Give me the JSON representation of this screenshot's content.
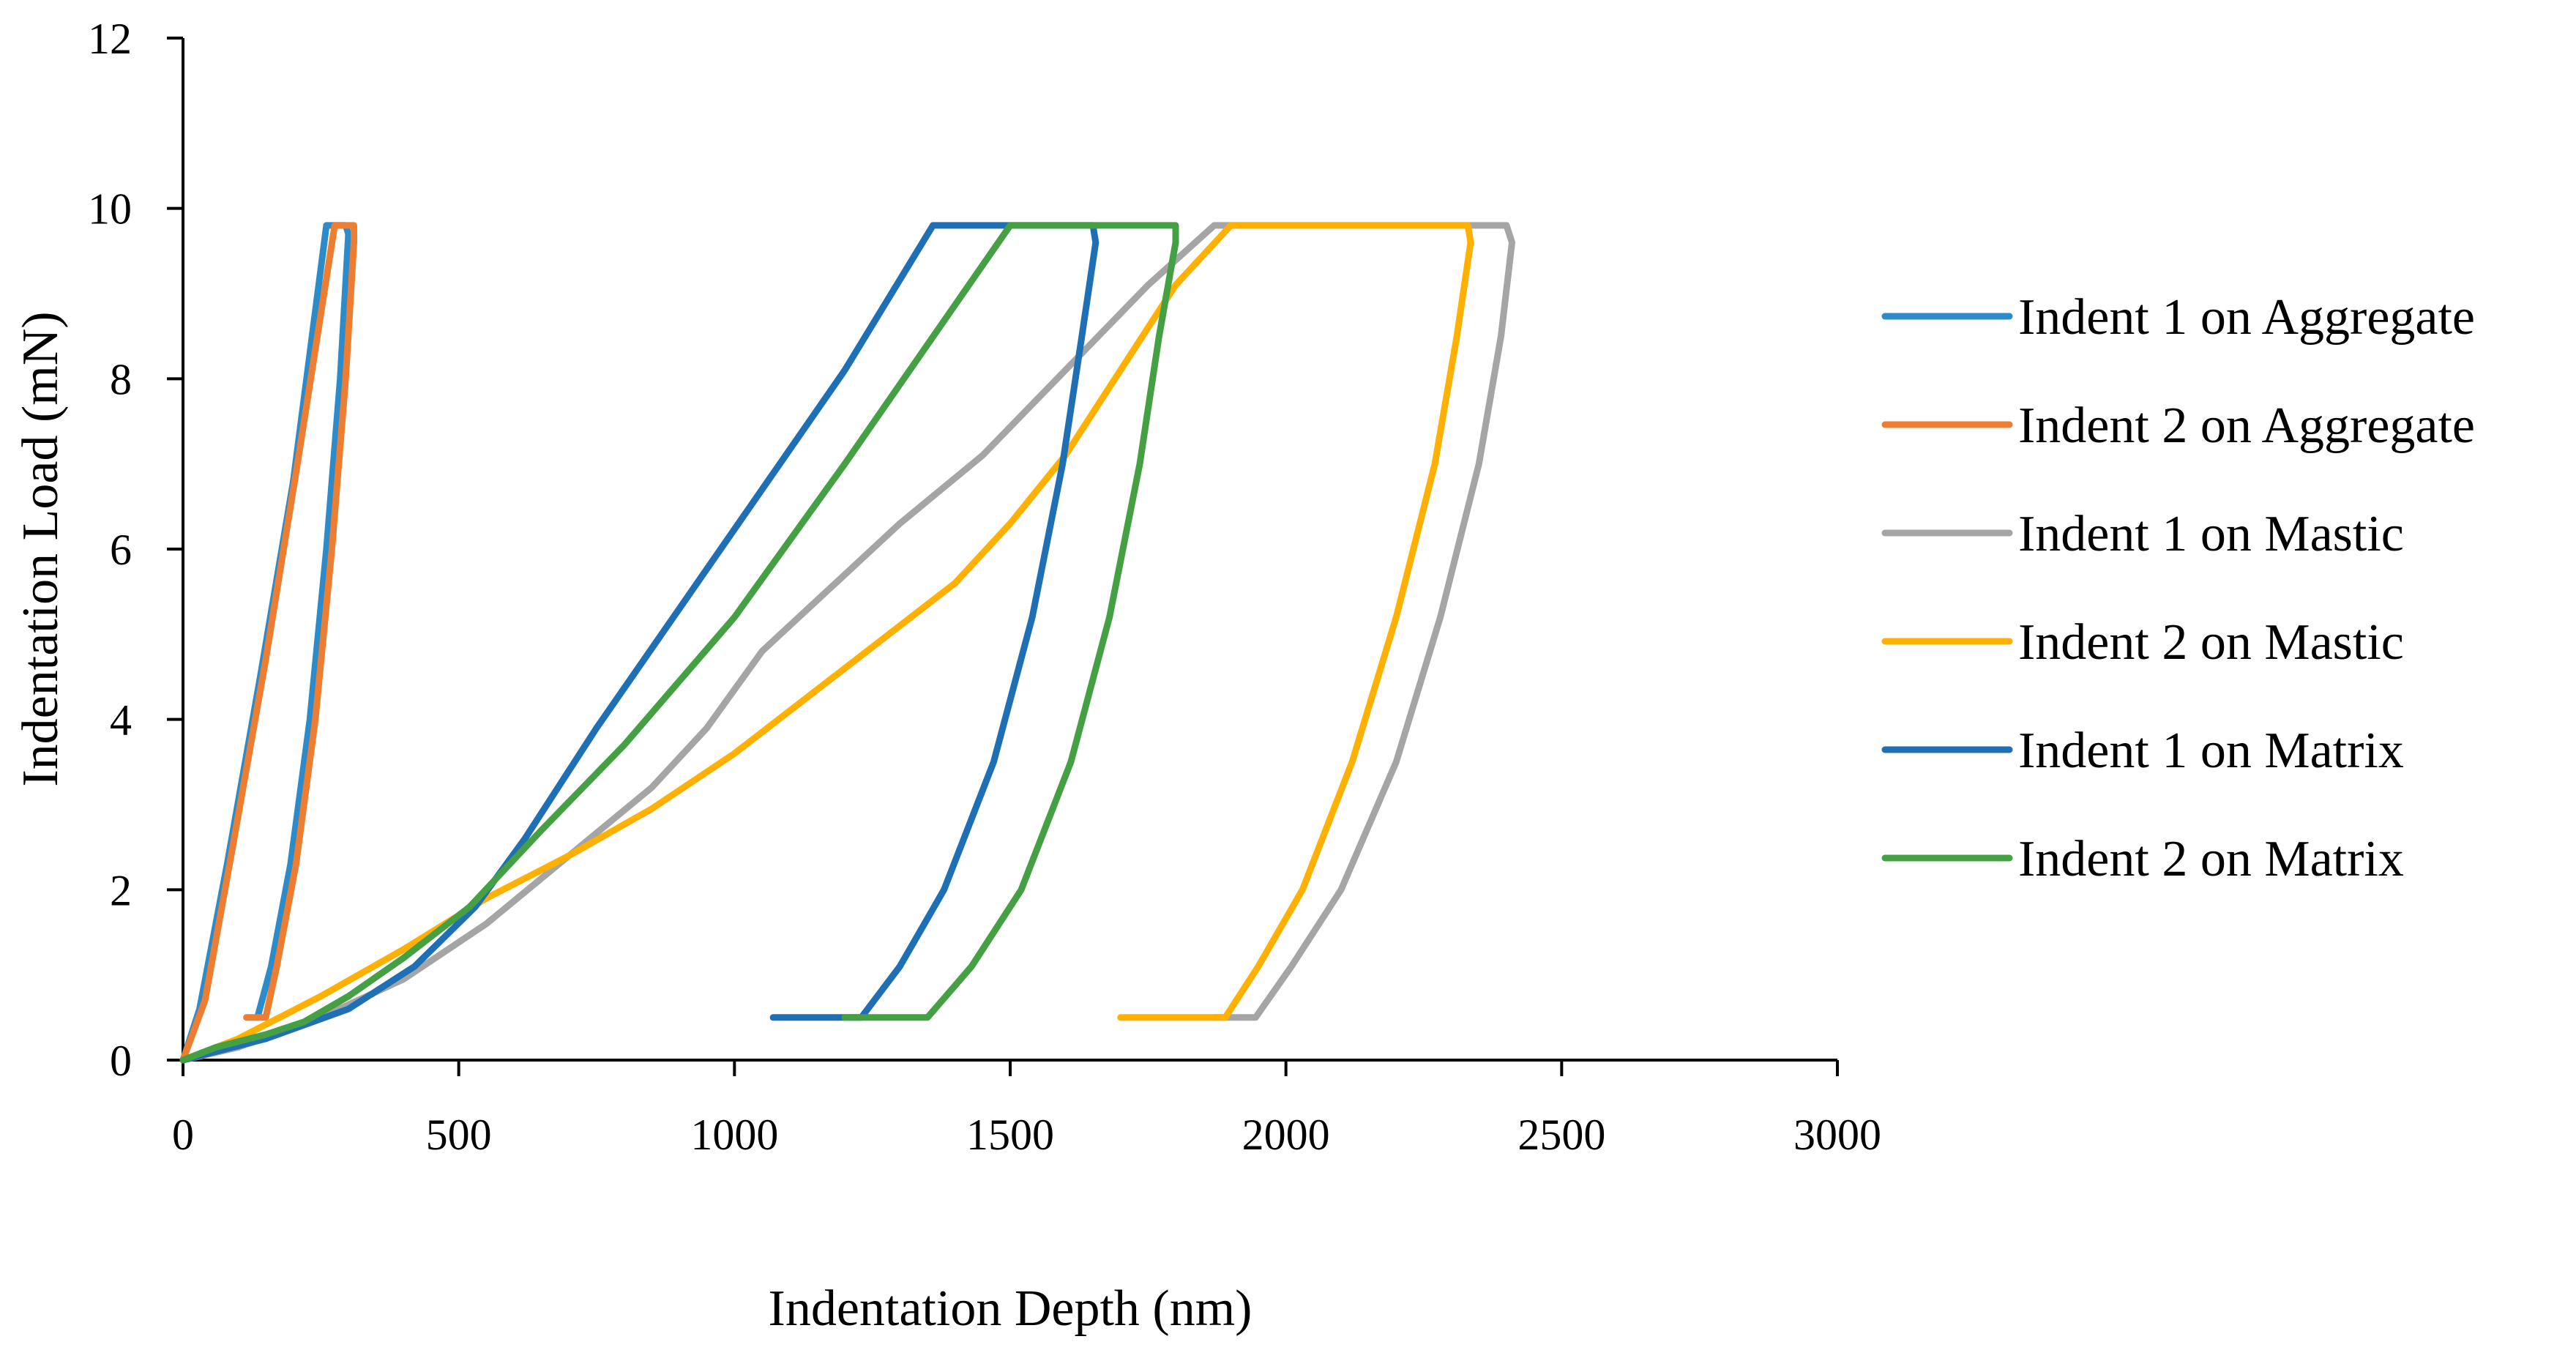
{
  "chart_data": {
    "type": "line",
    "title": "",
    "xlabel": "Indentation Depth (nm)",
    "ylabel": "Indentation Load (mN)",
    "xlim": [
      0,
      3000
    ],
    "ylim": [
      0,
      12
    ],
    "xticks": [
      0,
      500,
      1000,
      1500,
      2000,
      2500,
      3000
    ],
    "yticks": [
      0,
      2,
      4,
      6,
      8,
      10,
      12
    ],
    "xtick_labels": [
      "0",
      "500",
      "1000",
      "1500",
      "2000",
      "2500",
      "3000"
    ],
    "ytick_labels": [
      "0",
      "2",
      "4",
      "6",
      "8",
      "10",
      "12"
    ],
    "grid": false,
    "legend_position": "right",
    "series": [
      {
        "name": "Indent 1 on Aggregate",
        "color": "#2E8BC9",
        "points": [
          [
            0,
            0
          ],
          [
            30,
            0.6
          ],
          [
            80,
            2.3
          ],
          [
            140,
            4.5
          ],
          [
            200,
            6.8
          ],
          [
            260,
            9.8
          ],
          [
            295,
            9.8
          ],
          [
            300,
            9.7
          ],
          [
            285,
            8
          ],
          [
            260,
            6
          ],
          [
            230,
            4
          ],
          [
            195,
            2.3
          ],
          [
            160,
            1.1
          ],
          [
            135,
            0.5
          ]
        ]
      },
      {
        "name": "Indent 2 on Aggregate",
        "color": "#ED7D31",
        "points": [
          [
            0,
            0
          ],
          [
            40,
            0.7
          ],
          [
            90,
            2.5
          ],
          [
            150,
            4.7
          ],
          [
            210,
            7.1
          ],
          [
            275,
            9.8
          ],
          [
            310,
            9.8
          ],
          [
            310,
            9.6
          ],
          [
            295,
            8
          ],
          [
            270,
            6
          ],
          [
            240,
            4
          ],
          [
            205,
            2.3
          ],
          [
            170,
            1.1
          ],
          [
            150,
            0.5
          ],
          [
            115,
            0.5
          ]
        ]
      },
      {
        "name": "Indent 1 on Mastic",
        "color": "#A5A5A5",
        "points": [
          [
            0,
            0
          ],
          [
            100,
            0.15
          ],
          [
            250,
            0.5
          ],
          [
            400,
            0.95
          ],
          [
            550,
            1.6
          ],
          [
            700,
            2.4
          ],
          [
            850,
            3.2
          ],
          [
            950,
            3.9
          ],
          [
            1050,
            4.8
          ],
          [
            1200,
            5.7
          ],
          [
            1300,
            6.3
          ],
          [
            1450,
            7.1
          ],
          [
            1600,
            8.1
          ],
          [
            1750,
            9.1
          ],
          [
            1870,
            9.8
          ],
          [
            2400,
            9.8
          ],
          [
            2410,
            9.6
          ],
          [
            2390,
            8.5
          ],
          [
            2350,
            7
          ],
          [
            2280,
            5.2
          ],
          [
            2200,
            3.5
          ],
          [
            2100,
            2
          ],
          [
            2010,
            1.1
          ],
          [
            1945,
            0.5
          ],
          [
            1870,
            0.5
          ]
        ]
      },
      {
        "name": "Indent 2 on Mastic",
        "color": "#FFB000",
        "points": [
          [
            0,
            0
          ],
          [
            100,
            0.25
          ],
          [
            250,
            0.75
          ],
          [
            400,
            1.3
          ],
          [
            550,
            1.9
          ],
          [
            700,
            2.4
          ],
          [
            850,
            2.95
          ],
          [
            1000,
            3.6
          ],
          [
            1200,
            4.6
          ],
          [
            1400,
            5.6
          ],
          [
            1500,
            6.3
          ],
          [
            1600,
            7.1
          ],
          [
            1700,
            8.1
          ],
          [
            1800,
            9.1
          ],
          [
            1900,
            9.8
          ],
          [
            2330,
            9.8
          ],
          [
            2335,
            9.6
          ],
          [
            2310,
            8.5
          ],
          [
            2270,
            7
          ],
          [
            2200,
            5.2
          ],
          [
            2120,
            3.5
          ],
          [
            2030,
            2
          ],
          [
            1950,
            1.1
          ],
          [
            1890,
            0.5
          ],
          [
            1700,
            0.5
          ]
        ]
      },
      {
        "name": "Indent 1 on Matrix",
        "color": "#1F6FB5",
        "points": [
          [
            0,
            0
          ],
          [
            150,
            0.25
          ],
          [
            300,
            0.6
          ],
          [
            420,
            1.1
          ],
          [
            530,
            1.8
          ],
          [
            620,
            2.6
          ],
          [
            750,
            3.9
          ],
          [
            900,
            5.3
          ],
          [
            1050,
            6.7
          ],
          [
            1200,
            8.1
          ],
          [
            1360,
            9.8
          ],
          [
            1650,
            9.8
          ],
          [
            1655,
            9.6
          ],
          [
            1630,
            8.5
          ],
          [
            1595,
            7
          ],
          [
            1540,
            5.2
          ],
          [
            1470,
            3.5
          ],
          [
            1380,
            2
          ],
          [
            1300,
            1.1
          ],
          [
            1230,
            0.5
          ],
          [
            1070,
            0.5
          ]
        ]
      },
      {
        "name": "Indent 2 on Matrix",
        "color": "#44A043",
        "points": [
          [
            0,
            0
          ],
          [
            60,
            0.15
          ],
          [
            150,
            0.3
          ],
          [
            220,
            0.45
          ],
          [
            300,
            0.75
          ],
          [
            400,
            1.2
          ],
          [
            520,
            1.8
          ],
          [
            650,
            2.7
          ],
          [
            800,
            3.7
          ],
          [
            1000,
            5.2
          ],
          [
            1200,
            7
          ],
          [
            1350,
            8.4
          ],
          [
            1500,
            9.8
          ],
          [
            1800,
            9.8
          ],
          [
            1800,
            9.6
          ],
          [
            1770,
            8.5
          ],
          [
            1735,
            7
          ],
          [
            1680,
            5.2
          ],
          [
            1610,
            3.5
          ],
          [
            1520,
            2
          ],
          [
            1430,
            1.1
          ],
          [
            1350,
            0.5
          ],
          [
            1200,
            0.5
          ]
        ]
      }
    ]
  }
}
